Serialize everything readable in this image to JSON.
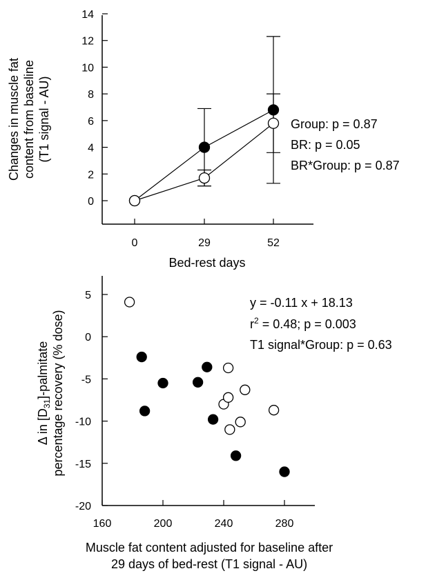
{
  "chart_data": [
    {
      "type": "line",
      "xlabel": "Bed-rest days",
      "ylabel": [
        "Changes in muscle fat",
        "content from baseline",
        "(T1 signal - AU)"
      ],
      "categories": [
        "0",
        "29",
        "52"
      ],
      "ylim": [
        0,
        14
      ],
      "yticks": [
        0,
        2,
        4,
        6,
        8,
        10,
        12,
        14
      ],
      "grid": false,
      "series": [
        {
          "marker": "filled",
          "values": [
            0,
            4.0,
            6.8
          ],
          "err": [
            0,
            2.9,
            5.5
          ]
        },
        {
          "marker": "open",
          "values": [
            0,
            1.7,
            5.8
          ],
          "err": [
            0,
            0.6,
            2.2
          ]
        }
      ],
      "annotations": [
        "Group: p = 0.87",
        "BR: p = 0.05",
        "BR*Group: p = 0.87"
      ]
    },
    {
      "type": "scatter",
      "xlabel": [
        "Muscle fat content adjusted for baseline after",
        "29 days of bed-rest (T1 signal - AU)"
      ],
      "ylabel": {
        "prefix": "Δ in [D",
        "sub": "31",
        "suffix": "]-palmitate",
        "line2": "percentage recovery (% dose)"
      },
      "xlim": [
        160,
        300
      ],
      "xticks": [
        160,
        200,
        240,
        280
      ],
      "ylim": [
        -20,
        5
      ],
      "yticks": [
        -20,
        -15,
        -10,
        -5,
        0,
        5
      ],
      "grid": false,
      "series": [
        {
          "marker": "filled",
          "points": [
            [
              186,
              -2.4
            ],
            [
              188,
              -8.8
            ],
            [
              200,
              -5.5
            ],
            [
              223,
              -5.4
            ],
            [
              229,
              -3.6
            ],
            [
              233,
              -9.8
            ],
            [
              248,
              -14.1
            ],
            [
              280,
              -16.0
            ]
          ]
        },
        {
          "marker": "open",
          "points": [
            [
              178,
              4.1
            ],
            [
              240,
              -8.0
            ],
            [
              243,
              -3.7
            ],
            [
              243,
              -7.2
            ],
            [
              244,
              -11.0
            ],
            [
              251,
              -10.1
            ],
            [
              254,
              -6.3
            ],
            [
              273,
              -8.7
            ]
          ]
        }
      ],
      "annotations": {
        "equation": "y = -0.11 x + 18.13",
        "r2_prefix": "r",
        "r2_sup": "2",
        "r2_suffix": " = 0.48; p = 0.003",
        "interaction": "T1 signal*Group: p = 0.63"
      }
    }
  ]
}
